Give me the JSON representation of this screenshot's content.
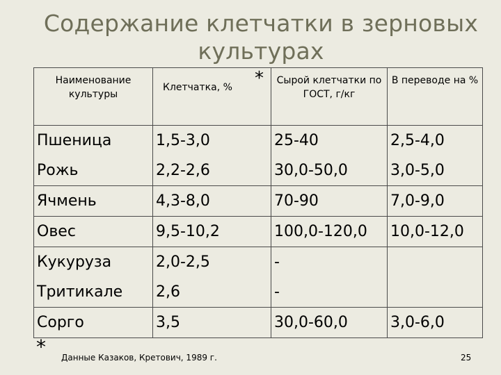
{
  "title": "Содержание клетчатки в зерновых культурах",
  "table": {
    "headers": {
      "crop": "Наименование культуры",
      "fiber": "Клетчатка, %",
      "fiber_mark": "*",
      "raw_fiber": "Сырой клетчатки по ГОСТ, г/кг",
      "percent": "В переводе на %"
    },
    "rows": [
      {
        "crop": "Пшеница",
        "fiber": "1,5-3,0",
        "raw_fiber": "25-40",
        "percent": "2,5-4,0"
      },
      {
        "crop": "Рожь",
        "fiber": "2,2-2,6",
        "raw_fiber": "30,0-50,0",
        "percent": "3,0-5,0"
      },
      {
        "crop": "Ячмень",
        "fiber": "4,3-8,0",
        "raw_fiber": "70-90",
        "percent": "7,0-9,0"
      },
      {
        "crop": "Овес",
        "fiber": "9,5-10,2",
        "raw_fiber": "100,0-120,0",
        "percent": "10,0-12,0"
      },
      {
        "crop": "Кукуруза",
        "fiber": "2,0-2,5",
        "raw_fiber": "-",
        "percent": ""
      },
      {
        "crop": "Тритикале",
        "fiber": "2,6",
        "raw_fiber": "-",
        "percent": ""
      },
      {
        "crop": "Сорго",
        "fiber": "3,5",
        "raw_fiber": "30,0-60,0",
        "percent": "3,0-6,0"
      }
    ]
  },
  "footnote": {
    "mark": "*",
    "source": "Данные  Казаков, Кретович, 1989 г."
  },
  "page_number": "25"
}
